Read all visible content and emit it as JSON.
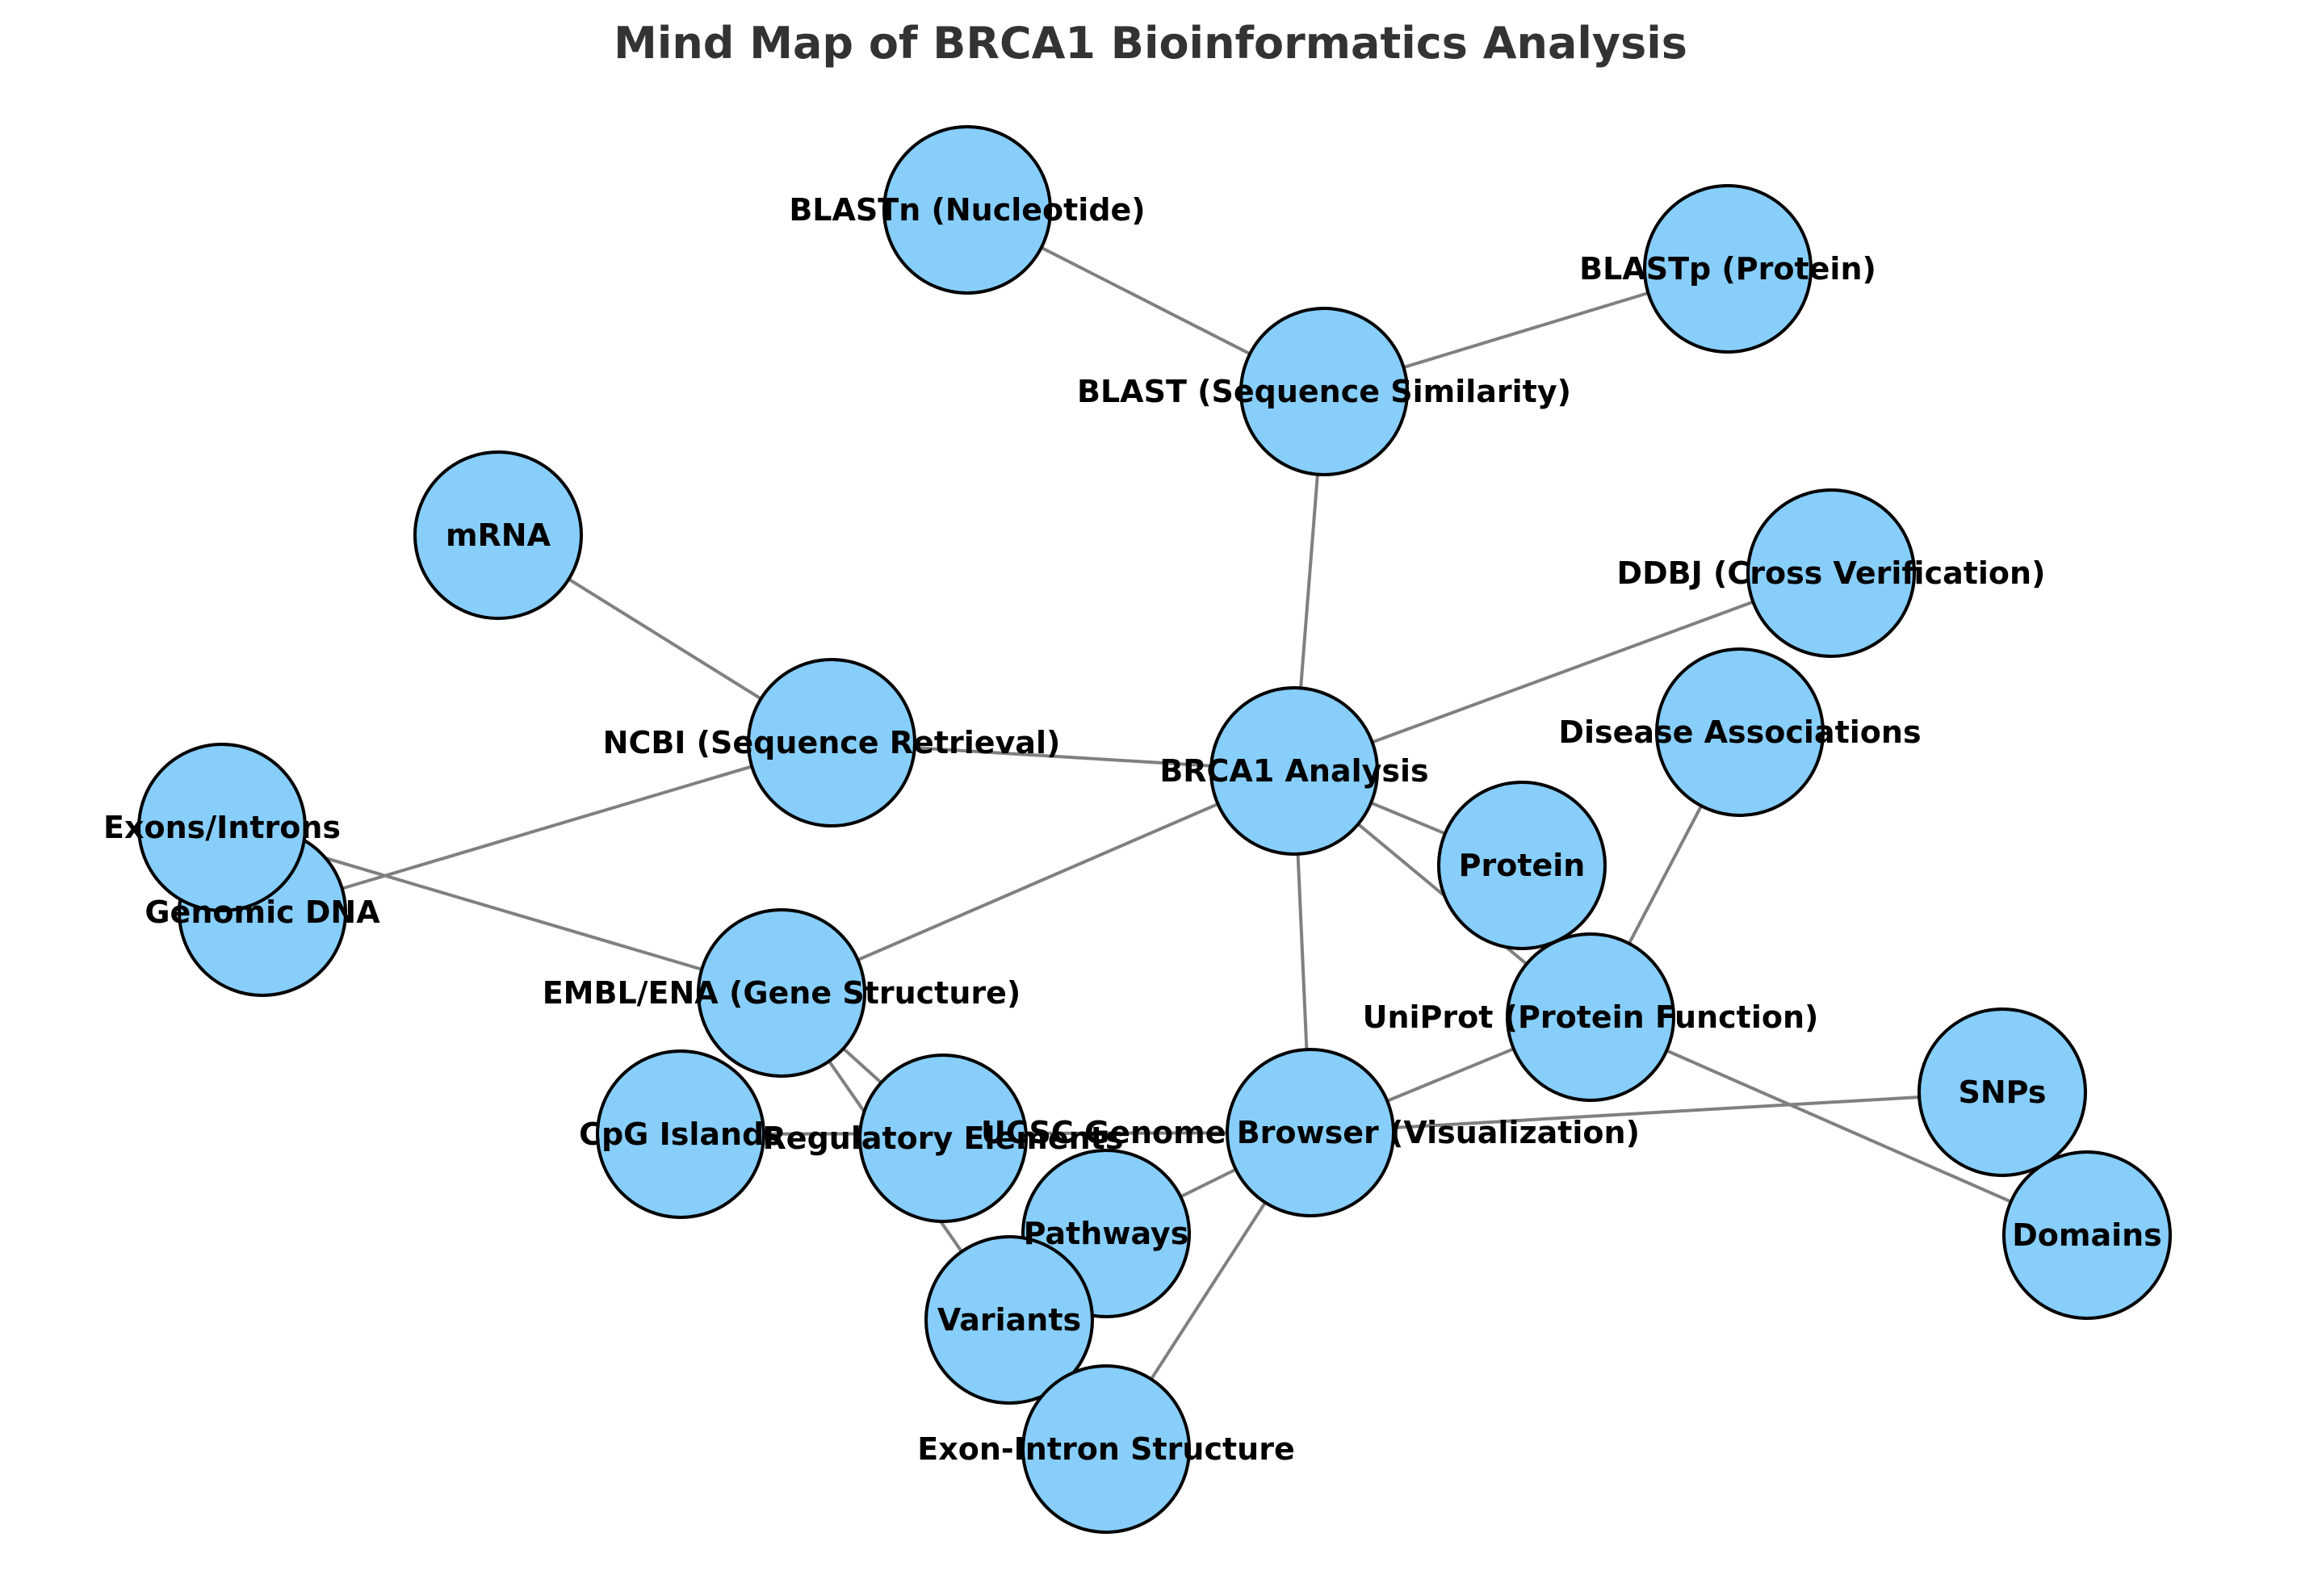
{
  "title": "Mind Map of BRCA1 Bioinformatics Analysis",
  "colors": {
    "node_fill": "#87CEFA",
    "node_stroke": "#000000",
    "edge": "#808080",
    "title": "#333333"
  },
  "nodes": [
    {
      "id": "brca1",
      "label": "BRCA1 Analysis"
    },
    {
      "id": "blast",
      "label": "BLAST (Sequence Similarity)"
    },
    {
      "id": "blastn",
      "label": "BLASTn (Nucleotide)"
    },
    {
      "id": "blastp",
      "label": "BLASTp (Protein)"
    },
    {
      "id": "mrna",
      "label": "mRNA"
    },
    {
      "id": "ddbj",
      "label": "DDBJ (Cross Verification)"
    },
    {
      "id": "disease",
      "label": "Disease Associations"
    },
    {
      "id": "ncbi",
      "label": "NCBI (Sequence Retrieval)"
    },
    {
      "id": "genomic",
      "label": "Genomic DNA"
    },
    {
      "id": "exons",
      "label": "Exons/Introns"
    },
    {
      "id": "protein",
      "label": "Protein"
    },
    {
      "id": "uniprot",
      "label": "UniProt (Protein Function)"
    },
    {
      "id": "embl",
      "label": "EMBL/ENA (Gene Structure)"
    },
    {
      "id": "cpg",
      "label": "CpG Islands"
    },
    {
      "id": "regulatory",
      "label": "Regulatory Elements"
    },
    {
      "id": "ucsc",
      "label": "UCSC Genome Browser (Visualization)"
    },
    {
      "id": "snps",
      "label": "SNPs"
    },
    {
      "id": "domains",
      "label": "Domains"
    },
    {
      "id": "pathways",
      "label": "Pathways"
    },
    {
      "id": "variants",
      "label": "Variants"
    },
    {
      "id": "exonintron",
      "label": "Exon-Intron Structure"
    }
  ],
  "edges": [
    [
      "blastn",
      "blast"
    ],
    [
      "blast",
      "blastp"
    ],
    [
      "blast",
      "brca1"
    ],
    [
      "mrna",
      "ncbi"
    ],
    [
      "ncbi",
      "brca1"
    ],
    [
      "ncbi",
      "genomic"
    ],
    [
      "brca1",
      "ddbj"
    ],
    [
      "brca1",
      "protein"
    ],
    [
      "brca1",
      "embl"
    ],
    [
      "brca1",
      "ucsc"
    ],
    [
      "brca1",
      "uniprot"
    ],
    [
      "disease",
      "uniprot"
    ],
    [
      "uniprot",
      "domains"
    ],
    [
      "uniprot",
      "ucsc"
    ],
    [
      "exons",
      "embl"
    ],
    [
      "embl",
      "regulatory"
    ],
    [
      "embl",
      "variants"
    ],
    [
      "ucsc",
      "snps"
    ],
    [
      "ucsc",
      "cpg"
    ],
    [
      "ucsc",
      "pathways"
    ],
    [
      "ucsc",
      "exonintron"
    ]
  ]
}
